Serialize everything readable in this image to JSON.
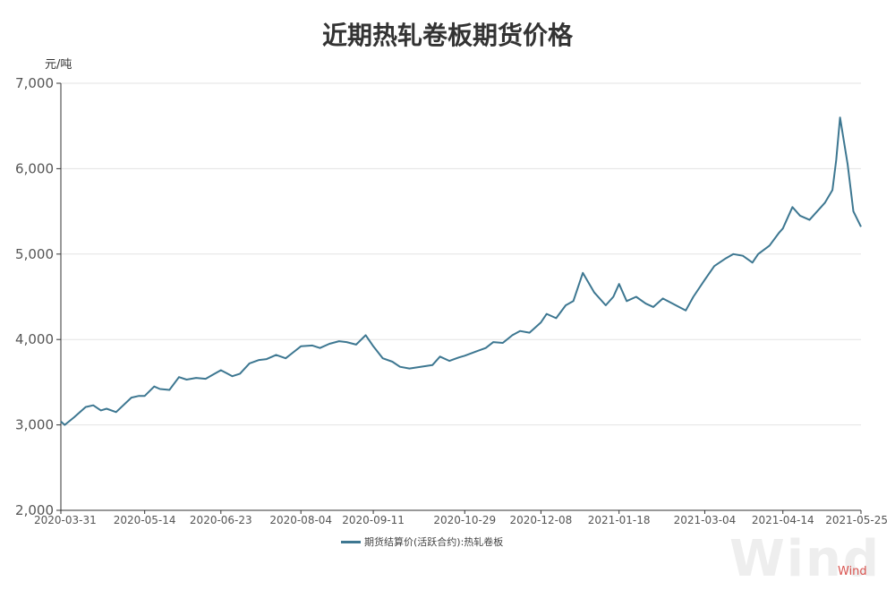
{
  "chart_data": {
    "type": "line",
    "title": "近期热轧卷板期货价格",
    "ylabel": "元/吨",
    "ylim": [
      2000,
      7000
    ],
    "yticks": [
      "2,000",
      "3,000",
      "4,000",
      "5,000",
      "6,000",
      "7,000"
    ],
    "xlim": [
      "2020-03-31",
      "2021-05-25"
    ],
    "xticks": [
      "2020-03-31",
      "2020-05-14",
      "2020-06-23",
      "2020-08-04",
      "2020-09-11",
      "2020-10-29",
      "2020-12-08",
      "2021-01-18",
      "2021-03-04",
      "2021-04-14",
      "2021-05-25"
    ],
    "grid": true,
    "legend_position": "bottom",
    "line_color": "#3d7791",
    "series": [
      {
        "name": "期货结算价(活跃合约):热轧卷板",
        "x": [
          "2020-03-31",
          "2020-04-02",
          "2020-04-07",
          "2020-04-13",
          "2020-04-17",
          "2020-04-21",
          "2020-04-24",
          "2020-04-29",
          "2020-05-07",
          "2020-05-11",
          "2020-05-14",
          "2020-05-19",
          "2020-05-22",
          "2020-05-27",
          "2020-06-01",
          "2020-06-05",
          "2020-06-10",
          "2020-06-15",
          "2020-06-19",
          "2020-06-23",
          "2020-06-29",
          "2020-07-03",
          "2020-07-08",
          "2020-07-13",
          "2020-07-17",
          "2020-07-22",
          "2020-07-27",
          "2020-07-31",
          "2020-08-04",
          "2020-08-10",
          "2020-08-14",
          "2020-08-19",
          "2020-08-24",
          "2020-08-28",
          "2020-09-02",
          "2020-09-07",
          "2020-09-11",
          "2020-09-16",
          "2020-09-21",
          "2020-09-25",
          "2020-09-30",
          "2020-10-12",
          "2020-10-16",
          "2020-10-21",
          "2020-10-26",
          "2020-10-29",
          "2020-11-04",
          "2020-11-09",
          "2020-11-13",
          "2020-11-18",
          "2020-11-23",
          "2020-11-27",
          "2020-12-02",
          "2020-12-08",
          "2020-12-11",
          "2020-12-16",
          "2020-12-21",
          "2020-12-25",
          "2020-12-30",
          "2021-01-05",
          "2021-01-11",
          "2021-01-15",
          "2021-01-18",
          "2021-01-22",
          "2021-01-27",
          "2021-02-01",
          "2021-02-05",
          "2021-02-10",
          "2021-02-22",
          "2021-02-26",
          "2021-03-04",
          "2021-03-09",
          "2021-03-15",
          "2021-03-19",
          "2021-03-24",
          "2021-03-29",
          "2021-04-01",
          "2021-04-07",
          "2021-04-12",
          "2021-04-14",
          "2021-04-19",
          "2021-04-23",
          "2021-04-28",
          "2021-05-06",
          "2021-05-10",
          "2021-05-12",
          "2021-05-14",
          "2021-05-18",
          "2021-05-21",
          "2021-05-25"
        ],
        "values": [
          3040,
          3000,
          3090,
          3210,
          3230,
          3170,
          3190,
          3150,
          3320,
          3340,
          3340,
          3450,
          3420,
          3410,
          3560,
          3530,
          3550,
          3540,
          3590,
          3640,
          3570,
          3600,
          3720,
          3760,
          3770,
          3820,
          3780,
          3850,
          3920,
          3930,
          3900,
          3950,
          3980,
          3970,
          3940,
          4050,
          3920,
          3780,
          3740,
          3680,
          3660,
          3700,
          3800,
          3750,
          3790,
          3810,
          3860,
          3900,
          3970,
          3960,
          4050,
          4100,
          4080,
          4200,
          4300,
          4250,
          4400,
          4450,
          4780,
          4550,
          4400,
          4500,
          4650,
          4450,
          4500,
          4420,
          4380,
          4480,
          4340,
          4500,
          4700,
          4860,
          4950,
          5000,
          4980,
          4900,
          5000,
          5100,
          5250,
          5300,
          5550,
          5450,
          5400,
          5600,
          5750,
          6100,
          6600,
          6050,
          5500,
          5320
        ]
      }
    ]
  },
  "watermark": "Wind",
  "watermark_small": "Wind"
}
